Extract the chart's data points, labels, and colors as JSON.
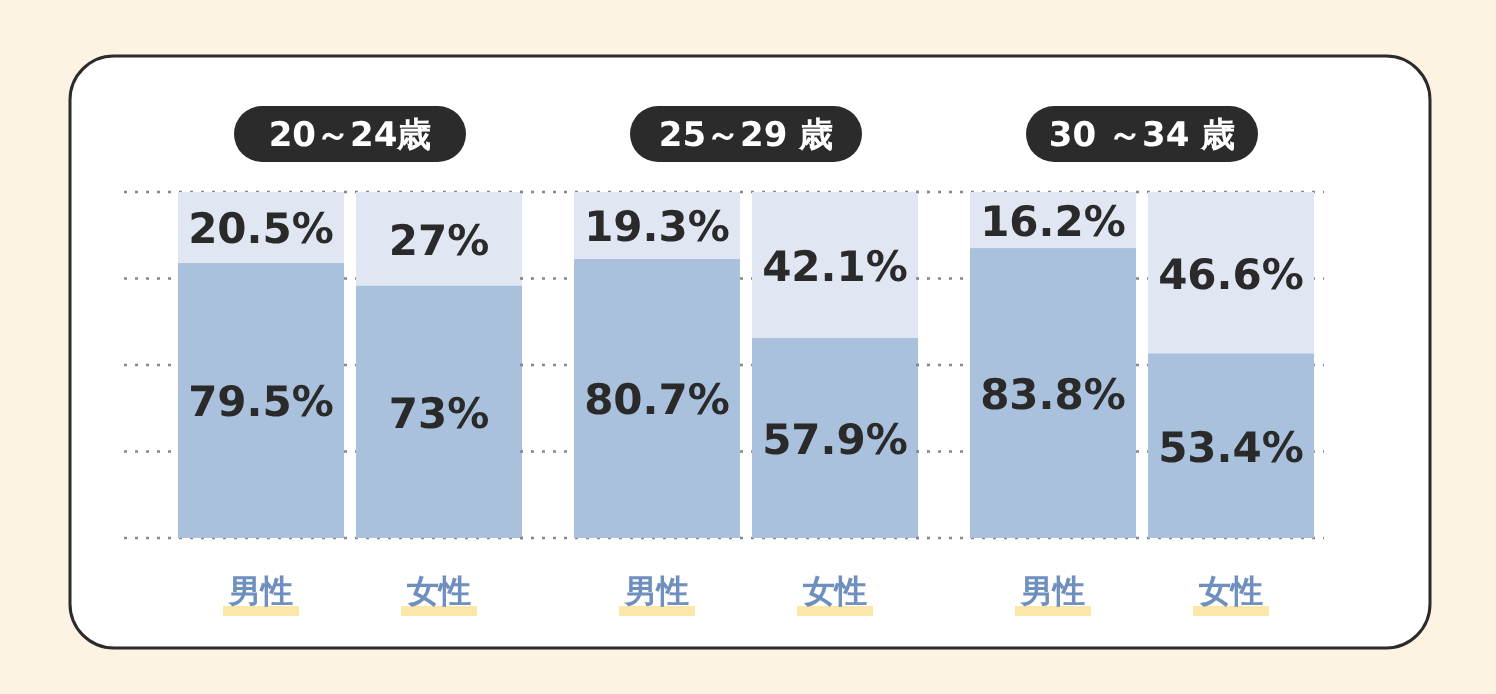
{
  "chart_data": [
    {
      "type": "bar",
      "title": "20～24歳",
      "categories": [
        "男性",
        "女性"
      ],
      "stacked": true,
      "ylim": [
        0,
        100
      ],
      "yticks": [
        {
          "value": 0,
          "label": null
        },
        {
          "value": 25,
          "label": null
        },
        {
          "value": 50,
          "label": null
        },
        {
          "value": 75,
          "label": null
        },
        {
          "value": 100,
          "label": null
        }
      ],
      "tick_labels": "x",
      "grid": "y",
      "series": [
        {
          "color": "#a9c1dc",
          "values": [
            79.5,
            73
          ],
          "value_labels": [
            "79.5%",
            "73%"
          ]
        },
        {
          "color": "#e1e7f2",
          "values": [
            20.5,
            27
          ],
          "value_labels": [
            "20.5%",
            "27%"
          ]
        }
      ]
    },
    {
      "type": "bar",
      "title": "25～29 歳",
      "categories": [
        "男性",
        "女性"
      ],
      "stacked": true,
      "ylim": [
        0,
        100
      ],
      "yticks": [
        {
          "value": 0,
          "label": null
        },
        {
          "value": 25,
          "label": null
        },
        {
          "value": 50,
          "label": null
        },
        {
          "value": 75,
          "label": null
        },
        {
          "value": 100,
          "label": null
        }
      ],
      "tick_labels": "x",
      "grid": "y",
      "series": [
        {
          "color": "#a9c1dc",
          "values": [
            80.7,
            57.9
          ],
          "value_labels": [
            "80.7%",
            "57.9%"
          ]
        },
        {
          "color": "#e1e7f2",
          "values": [
            19.3,
            42.1
          ],
          "value_labels": [
            "19.3%",
            "42.1%"
          ]
        }
      ]
    },
    {
      "type": "bar",
      "title": "30 ～34 歳",
      "categories": [
        "男性",
        "女性"
      ],
      "stacked": true,
      "ylim": [
        0,
        100
      ],
      "yticks": [
        {
          "value": 0,
          "label": null
        },
        {
          "value": 25,
          "label": null
        },
        {
          "value": 50,
          "label": null
        },
        {
          "value": 75,
          "label": null
        },
        {
          "value": 100,
          "label": null
        }
      ],
      "tick_labels": "x",
      "grid": "y",
      "series": [
        {
          "color": "#a9c1dc",
          "values": [
            83.8,
            53.4
          ],
          "value_labels": [
            "83.8%",
            "53.4%"
          ]
        },
        {
          "color": "#e1e7f2",
          "values": [
            16.2,
            46.6
          ],
          "value_labels": [
            "16.2%",
            "46.6%"
          ]
        }
      ]
    }
  ]
}
